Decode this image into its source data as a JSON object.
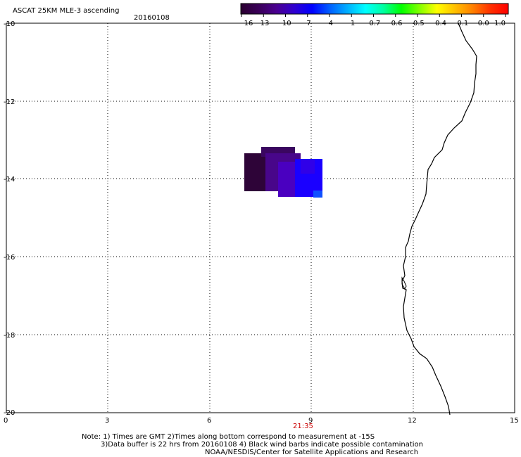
{
  "header": {
    "title": "ASCAT 25KM MLE-3 ascending",
    "date": "20160108"
  },
  "colorbar": {
    "labels": [
      "-16",
      "-13",
      "-10",
      "-7",
      "-4",
      "-1",
      "-0.7",
      "-0.6",
      "-0.5",
      "-0.4",
      "-0.1",
      "0.0",
      "1.0"
    ],
    "colors": [
      "#2a0030",
      "#3a0058",
      "#4a0090",
      "#3000d0",
      "#0000ff",
      "#0060ff",
      "#00b0ff",
      "#00ffff",
      "#00ffa0",
      "#00ff00",
      "#80ff00",
      "#ffff00",
      "#ffc000",
      "#ff8000",
      "#ff3000",
      "#ff0000"
    ]
  },
  "axes": {
    "x_ticks": [
      "0",
      "3",
      "6",
      "9",
      "12",
      "15"
    ],
    "y_ticks": [
      "-10",
      "-12",
      "-14",
      "-16",
      "-18",
      "-20"
    ]
  },
  "pass_time": "21:35",
  "notes": {
    "line1": "Note: 1) Times are GMT 2)Times along bottom correspond to measurement at -15S",
    "line2": "3)Data buffer is 22 hrs from 20160108 4) Black wind barbs indicate possible contamination",
    "line3": "NOAA/NESDIS/Center for Satellite Applications and Research"
  },
  "colors": {
    "dark_purple": "#2e0438",
    "purple": "#48068a",
    "violet": "#4a00c0",
    "blue": "#1a00ff",
    "light_blue": "#1050ff",
    "time_label": "#cc0000"
  }
}
